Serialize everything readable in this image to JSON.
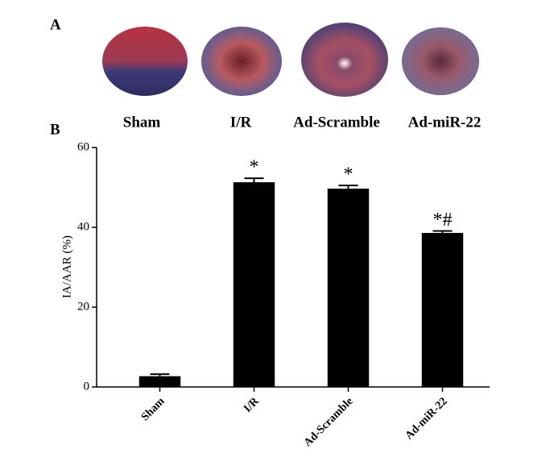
{
  "panel_a": {
    "label": "A",
    "images": [
      "Sham",
      "I/R",
      "Ad-Scramble",
      "Ad-miR-22"
    ]
  },
  "chart_data": {
    "type": "bar",
    "panel_label": "B",
    "y_label": "IA/AAR (%)",
    "categories": [
      "Sham",
      "I/R",
      "Ad-Scramble",
      "Ad-miR-22"
    ],
    "values": [
      2.7,
      51.3,
      49.7,
      38.6
    ],
    "errors": [
      0.5,
      1.0,
      0.8,
      0.5
    ],
    "annotations": [
      null,
      "*",
      "*",
      "*#"
    ],
    "color": "#000000",
    "ylim": [
      0,
      60
    ],
    "yticks": [
      0,
      20,
      40,
      60
    ]
  }
}
